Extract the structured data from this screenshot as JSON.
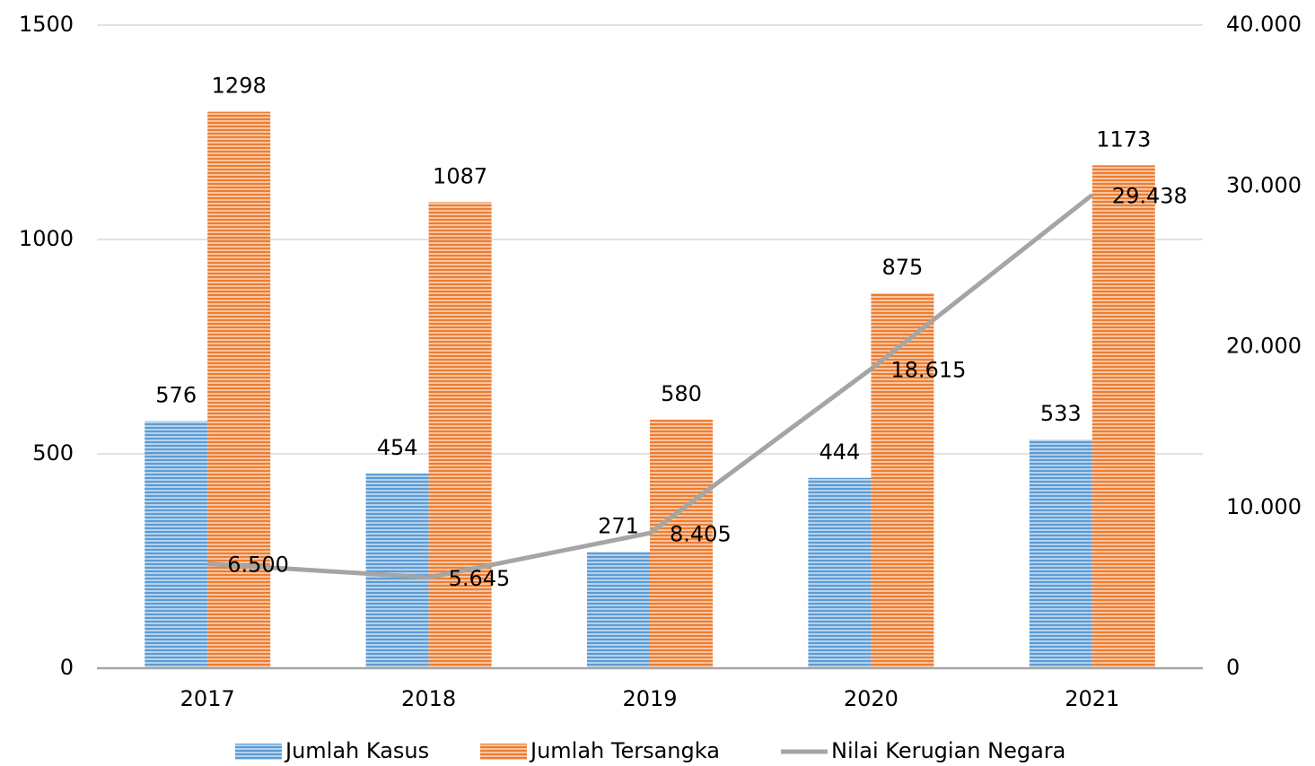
{
  "chart_data": {
    "type": "bar",
    "categories": [
      "2017",
      "2018",
      "2019",
      "2020",
      "2021"
    ],
    "series": [
      {
        "name": "Jumlah Kasus",
        "color": "#5b9bd5",
        "values": [
          576,
          454,
          271,
          444,
          533
        ]
      },
      {
        "name": "Jumlah Tersangka",
        "color": "#ed7d31",
        "values": [
          1298,
          1087,
          580,
          875,
          1173
        ]
      },
      {
        "name": "Nilai Kerugian Negara",
        "type": "line",
        "axis": "y2",
        "color": "#a5a5a5",
        "values": [
          6500,
          5645,
          8405,
          18615,
          29438
        ],
        "value_labels": [
          "6.500",
          "5.645",
          "8.405",
          "18.615",
          "29.438"
        ]
      }
    ],
    "ylim": [
      0,
      1500
    ],
    "yticks": [
      0,
      500,
      1000,
      1500
    ],
    "y2lim": [
      0,
      40000
    ],
    "y2ticks": [
      0,
      {
        "value": 10000,
        "label": "10.000"
      },
      {
        "value": 20000,
        "label": "20.000"
      },
      {
        "value": 30000,
        "label": "30.000"
      },
      {
        "value": 40000,
        "label": "40.000"
      }
    ],
    "grid": true,
    "legend": "bottom"
  }
}
